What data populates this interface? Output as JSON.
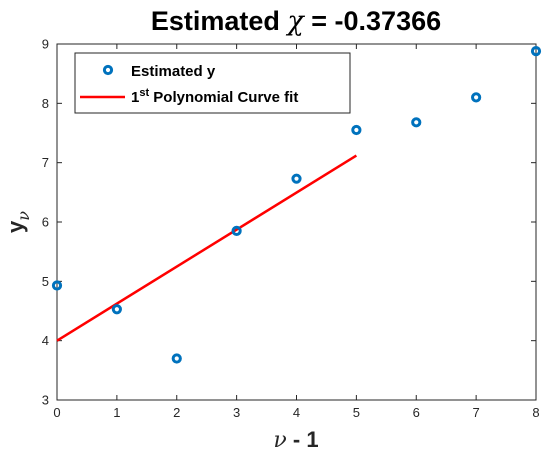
{
  "chart_data": {
    "type": "scatter",
    "title": "Estimated χ = -0.37366",
    "title_parts": {
      "prefix": "Estimated ",
      "symbol": "χ",
      "suffix": " = -0.37366"
    },
    "xlabel": "ν - 1",
    "xlabel_parts": {
      "symbol": "ν",
      "suffix": " - 1"
    },
    "ylabel": "yν",
    "ylabel_parts": {
      "base": "y",
      "subscript": "ν"
    },
    "xlim": [
      0,
      8
    ],
    "ylim": [
      3,
      9
    ],
    "xticks": [
      0,
      1,
      2,
      3,
      4,
      5,
      6,
      7,
      8
    ],
    "yticks": [
      3,
      4,
      5,
      6,
      7,
      8,
      9
    ],
    "grid": false,
    "legend_position": "top-left",
    "series": [
      {
        "name": "Estimated y",
        "kind": "scatter",
        "color": "#0072BD",
        "x": [
          0,
          1,
          2,
          3,
          4,
          5,
          6,
          7,
          8
        ],
        "y": [
          4.93,
          4.53,
          3.7,
          5.85,
          6.73,
          7.55,
          7.68,
          8.1,
          8.88
        ]
      },
      {
        "name": "1st Polynomial Curve fit",
        "name_parts": {
          "prefix": "1",
          "superscript": "st",
          "suffix": " Polynomial Curve fit"
        },
        "kind": "line",
        "color": "#FF0000",
        "x": [
          0,
          5
        ],
        "y": [
          4.0,
          7.12
        ]
      }
    ]
  }
}
